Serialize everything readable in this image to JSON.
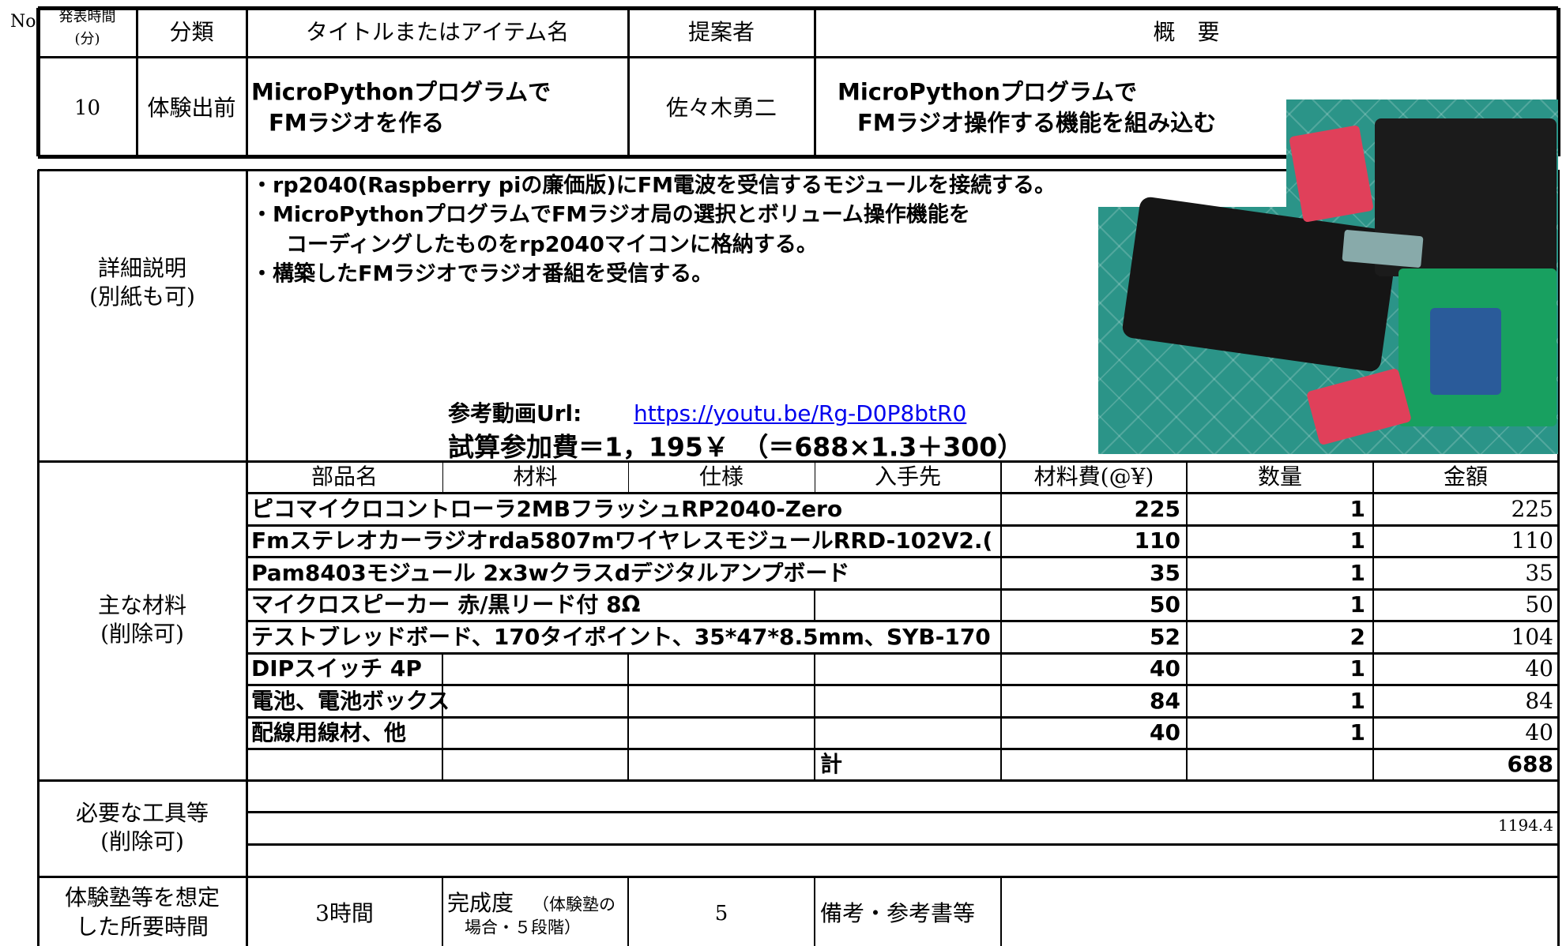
{
  "header": {
    "no": "No",
    "time_label": [
      "発表時間",
      "(分)"
    ],
    "category": "分類",
    "title": "タイトルまたはアイテム名",
    "proposer": "提案者",
    "summary": "概　要"
  },
  "item": {
    "time": 10,
    "category": "体験出前",
    "title": [
      "MicroPythonプログラムで",
      "FMラジオを作る"
    ],
    "proposer": "佐々木勇二",
    "summary": [
      "MicroPythonプログラムで",
      "FMラジオ操作する機能を組み込む"
    ]
  },
  "details": {
    "label": [
      "詳細説明",
      "(別紙も可)"
    ],
    "lines": [
      "・rp2040(Raspberry piの廉価版)にFM電波を受信するモジュールを接続する。",
      "・MicroPythonプログラムでFMラジオ局の選択とボリューム操作機能を",
      "コーディングしたものをrp2040マイコンに格納する。",
      "・構築したFMラジオでラジオ番組を受信する。"
    ],
    "video_label": "参考動画Url:",
    "video_url": "https://youtu.be/Rg-D0P8btR0",
    "fee": "試算参加費＝1，195￥　（＝688×1.3＋300）"
  },
  "materials": {
    "label": [
      "主な材料",
      "(削除可)"
    ],
    "columns": [
      "部品名",
      "材料",
      "仕様",
      "入手先",
      "材料費(@¥)",
      "数量",
      "金額"
    ],
    "rows": [
      [
        "ピコマイクロコントローラ2MBフラッシュRP2040-Zero",
        225,
        1,
        225
      ],
      [
        "Fmステレオカーラジオrda5807mワイヤレスモジュールRRD-102V2.(",
        110,
        1,
        110
      ],
      [
        "Pam8403モジュール 2x3wクラスdデジタルアンプボード",
        35,
        1,
        35
      ],
      [
        "マイクロスピーカー 赤/黒リード付 8Ω",
        50,
        1,
        50
      ],
      [
        "テストブレッドボード、170タイポイント、35*47*8.5mm、SYB-170",
        52,
        2,
        104
      ],
      [
        "DIPスイッチ 4P",
        40,
        1,
        40
      ],
      [
        "電池、電池ボックス",
        84,
        1,
        84
      ],
      [
        "配線用線材、他",
        40,
        1,
        40
      ]
    ],
    "total_label": "計",
    "total": 688
  },
  "tools": {
    "label": [
      "必要な工具等",
      "(削除可)"
    ],
    "note": 1194.4
  },
  "footer": {
    "time_label": [
      "体験塾等を想定",
      "した所要時間"
    ],
    "time": "3時間",
    "completion_label": [
      "完成度",
      "（体験塾の",
      "場合・５段階）"
    ],
    "completion": 5,
    "remarks_label": "備考・参考書等"
  }
}
